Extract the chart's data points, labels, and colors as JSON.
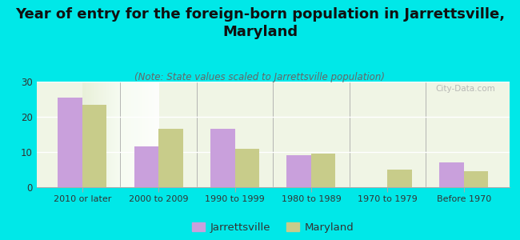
{
  "title": "Year of entry for the foreign-born population in Jarrettsville,\nMaryland",
  "subtitle": "(Note: State values scaled to Jarrettsville population)",
  "categories": [
    "2010 or later",
    "2000 to 2009",
    "1990 to 1999",
    "1980 to 1989",
    "1970 to 1979",
    "Before 1970"
  ],
  "jarrettsville_values": [
    25.5,
    11.5,
    16.5,
    9.0,
    0,
    7.0
  ],
  "maryland_values": [
    23.5,
    16.5,
    11.0,
    9.5,
    5.0,
    4.5
  ],
  "jarrettsville_color": "#c9a0dc",
  "maryland_color": "#c8cc8a",
  "background_color": "#00e8e8",
  "ylim": [
    0,
    30
  ],
  "yticks": [
    0,
    10,
    20,
    30
  ],
  "title_fontsize": 13,
  "subtitle_fontsize": 8.5,
  "legend_labels": [
    "Jarrettsville",
    "Maryland"
  ]
}
